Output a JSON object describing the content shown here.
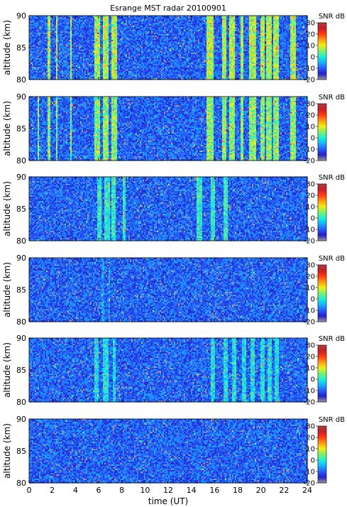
{
  "figure": {
    "title": "Esrange MST radar 20100901",
    "xlabel": "time (UT)",
    "ylabel": "altitude (km)",
    "colorbar_label": "SNR dB"
  },
  "chart_data": {
    "type": "heatmap",
    "title": "Esrange MST radar 20100901",
    "xlabel": "time (UT)",
    "ylabel": "altitude (km)",
    "x_range": [
      0,
      24
    ],
    "y_range": [
      80,
      90
    ],
    "x_ticks": [
      "0",
      "2",
      "4",
      "6",
      "8",
      "10",
      "12",
      "14",
      "16",
      "18",
      "20",
      "22",
      "24"
    ],
    "y_ticks": [
      "80",
      "85",
      "90"
    ],
    "colorbar": {
      "label": "SNR dB",
      "range": [
        -20,
        30
      ],
      "ticks": [
        "30",
        "20",
        "10",
        "0",
        "-10",
        "-20"
      ],
      "colormap": [
        "#9a9a9a",
        "#2020c8",
        "#2a5cff",
        "#14b4ff",
        "#1ef0d2",
        "#7cf06a",
        "#f0f014",
        "#ff9a14",
        "#ff3c14",
        "#c81e28",
        "#a84040"
      ]
    },
    "background_snr_db": -10,
    "panels": [
      {
        "enhanced_intervals_UT": [
          [
            1.6,
            1.8
          ],
          [
            2.3,
            2.45
          ],
          [
            3.6,
            3.7
          ],
          [
            5.6,
            6.1
          ],
          [
            6.4,
            6.9
          ],
          [
            7.1,
            7.6
          ],
          [
            15.3,
            15.9
          ],
          [
            16.6,
            17.0
          ],
          [
            17.3,
            17.8
          ],
          [
            18.2,
            18.5
          ],
          [
            19.0,
            19.6
          ],
          [
            19.9,
            20.3
          ],
          [
            20.5,
            20.9
          ],
          [
            21.1,
            21.6
          ],
          [
            22.5,
            23.0
          ]
        ],
        "enhanced_snr_db": 8
      },
      {
        "enhanced_intervals_UT": [
          [
            0.7,
            0.8
          ],
          [
            1.6,
            1.8
          ],
          [
            2.3,
            2.45
          ],
          [
            3.6,
            3.7
          ],
          [
            5.6,
            6.1
          ],
          [
            6.4,
            6.9
          ],
          [
            7.1,
            7.6
          ],
          [
            15.3,
            15.9
          ],
          [
            16.6,
            17.0
          ],
          [
            17.3,
            17.8
          ],
          [
            18.2,
            18.5
          ],
          [
            19.0,
            19.6
          ],
          [
            19.9,
            20.3
          ],
          [
            20.5,
            20.9
          ],
          [
            21.1,
            21.6
          ],
          [
            22.5,
            23.0
          ]
        ],
        "enhanced_snr_db": 6
      },
      {
        "enhanced_intervals_UT": [
          [
            5.9,
            6.3
          ],
          [
            6.5,
            7.0
          ],
          [
            7.1,
            7.5
          ],
          [
            8.1,
            8.3
          ],
          [
            14.5,
            14.9
          ],
          [
            15.7,
            16.0
          ],
          [
            16.8,
            17.1
          ]
        ],
        "enhanced_snr_db": 1
      },
      {
        "enhanced_intervals_UT": [
          [
            6.3,
            6.5
          ],
          [
            6.8,
            7.0
          ]
        ],
        "enhanced_snr_db": -6
      },
      {
        "enhanced_intervals_UT": [
          [
            5.6,
            6.0
          ],
          [
            6.4,
            6.8
          ],
          [
            7.2,
            7.5
          ],
          [
            15.7,
            16.1
          ],
          [
            16.8,
            17.2
          ],
          [
            17.5,
            17.9
          ],
          [
            18.4,
            18.7
          ],
          [
            19.1,
            19.5
          ],
          [
            20.0,
            20.3
          ],
          [
            20.6,
            20.9
          ],
          [
            21.2,
            21.6
          ]
        ],
        "enhanced_snr_db": -1
      },
      {
        "enhanced_intervals_UT": [],
        "enhanced_snr_db": -10
      }
    ]
  }
}
